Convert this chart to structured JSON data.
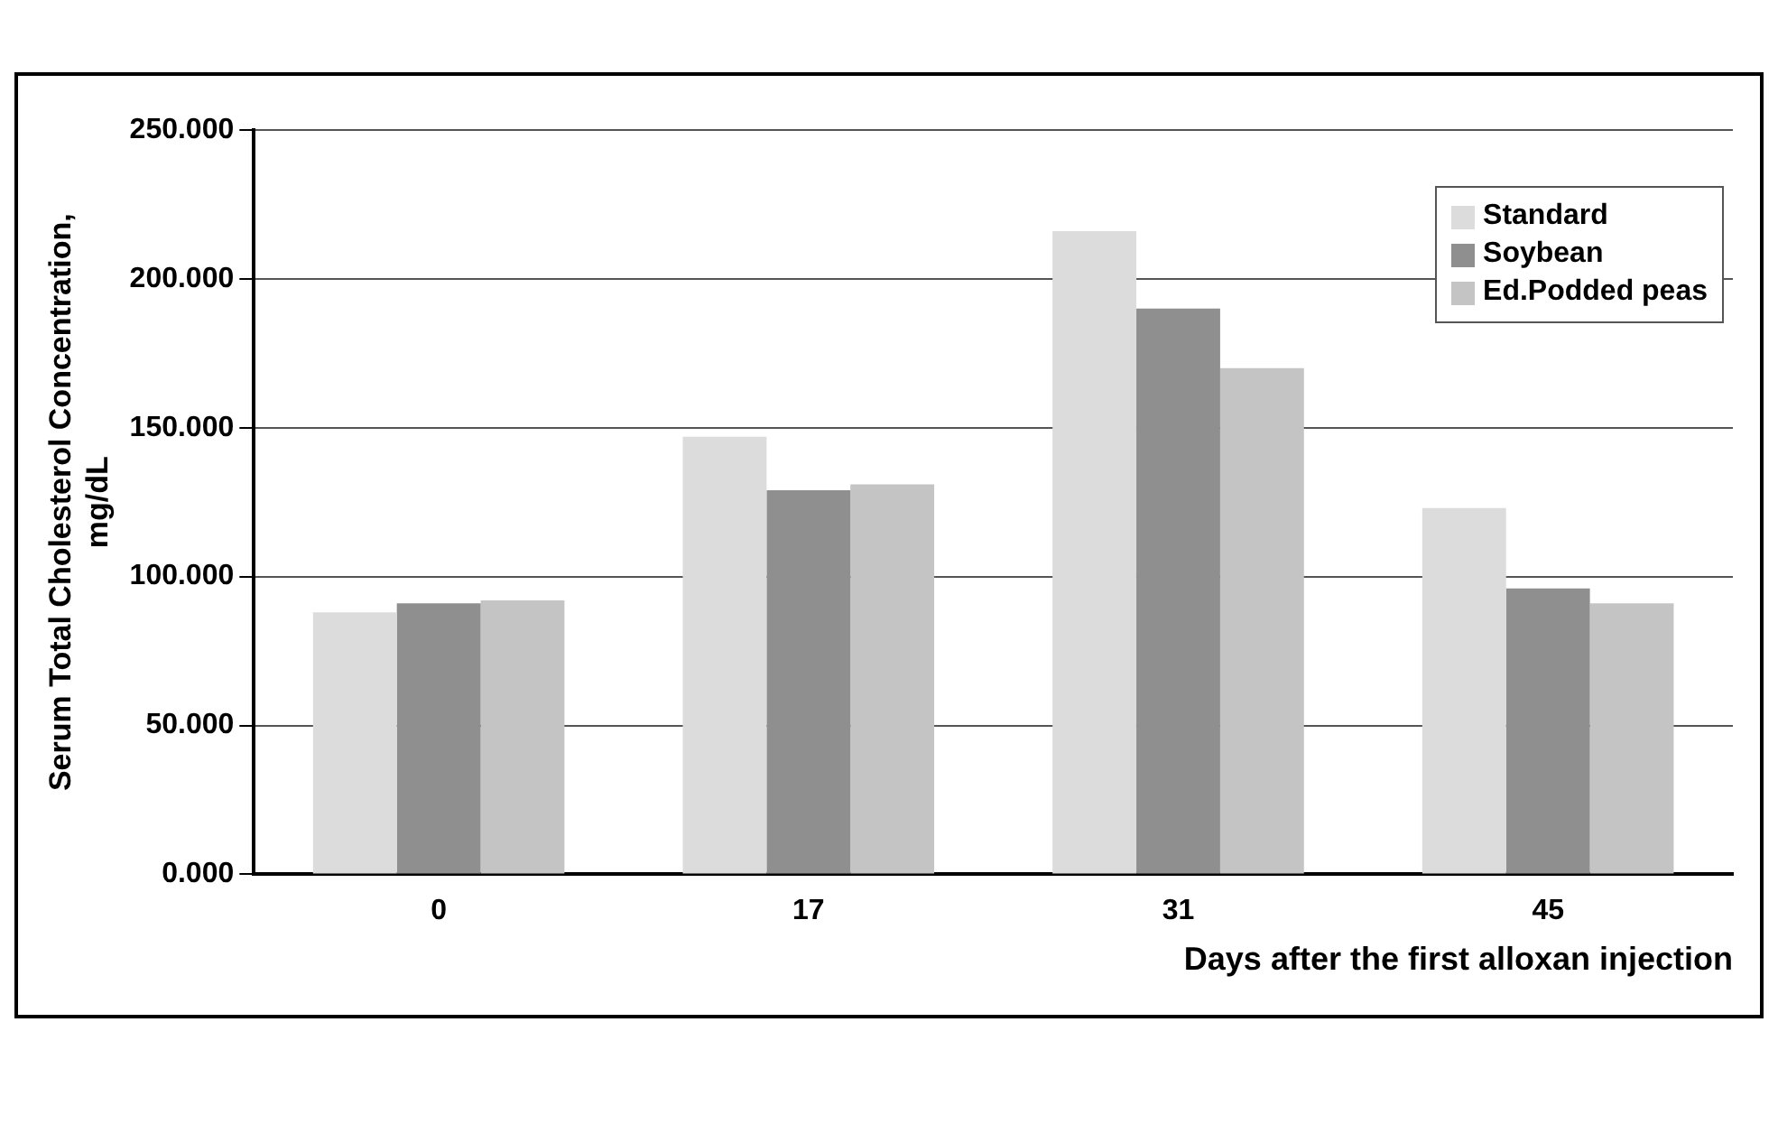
{
  "chart_data": {
    "type": "bar",
    "xlabel": "Days after the first alloxan injection",
    "ylabel": "Serum Total Cholesterol Concentration,\nmg/dL",
    "categories": [
      "0",
      "17",
      "31",
      "45"
    ],
    "series": [
      {
        "name": "Standard",
        "color": "#dcdcdc",
        "values": [
          88,
          147,
          216,
          123
        ]
      },
      {
        "name": "Soybean",
        "color": "#8f8f8f",
        "values": [
          91,
          129,
          190,
          96
        ]
      },
      {
        "name": "Ed.Podded peas",
        "color": "#c4c4c4",
        "values": [
          92,
          131,
          170,
          91
        ]
      }
    ],
    "ylim": [
      0,
      250
    ],
    "yticks": [
      {
        "value": 0,
        "label": "0.000"
      },
      {
        "value": 50,
        "label": "50.000"
      },
      {
        "value": 100,
        "label": "100.000"
      },
      {
        "value": 150,
        "label": "150.000"
      },
      {
        "value": 200,
        "label": "200.000"
      },
      {
        "value": 250,
        "label": "250.000"
      }
    ],
    "grid": "y",
    "legend": "top right"
  }
}
